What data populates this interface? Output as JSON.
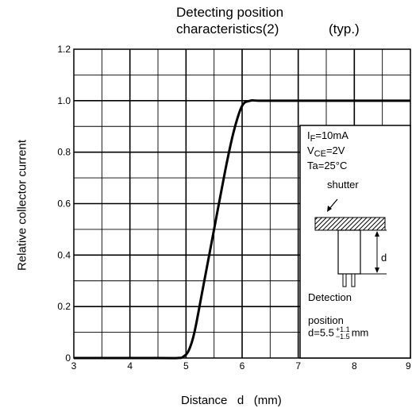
{
  "chart_data": {
    "type": "line",
    "title_line1": "Detecting position",
    "title_line2": "characteristics(2)",
    "title_note": "(typ.)",
    "xlabel": "Distance   d   (mm)",
    "ylabel": "Relative collector current",
    "xlim": [
      3,
      9
    ],
    "ylim": [
      0,
      1.2
    ],
    "x_ticks": [
      "3",
      "4",
      "5",
      "6",
      "7",
      "8",
      "9"
    ],
    "y_ticks": [
      "0",
      "0.2",
      "0.4",
      "0.6",
      "0.8",
      "1.0",
      "1.2"
    ],
    "grid": true,
    "series": [
      {
        "x": [
          3.0,
          4.5,
          4.85,
          4.95,
          5.05,
          5.15,
          5.3,
          5.5,
          5.7,
          5.85,
          6.0,
          6.15,
          6.3,
          7.0,
          9.0
        ],
        "y": [
          0.0,
          0.0,
          0.0,
          0.005,
          0.03,
          0.1,
          0.27,
          0.5,
          0.73,
          0.88,
          0.98,
          1.0,
          1.0,
          1.0,
          1.0
        ]
      }
    ],
    "inset": {
      "if_label": "I",
      "if_sub": "F",
      "if_value": "=10mA",
      "vce_label": "V",
      "vce_sub": "CE",
      "vce_value": "=2V",
      "ta_text": "Ta=25°C",
      "shutter_label": "shutter",
      "d_label": "d",
      "detection_label": "Detection",
      "position_label": "position",
      "formula_prefix": "d=5.5",
      "formula_sup": "+1.1",
      "formula_sub": "−1.5",
      "formula_unit": "mm"
    }
  }
}
